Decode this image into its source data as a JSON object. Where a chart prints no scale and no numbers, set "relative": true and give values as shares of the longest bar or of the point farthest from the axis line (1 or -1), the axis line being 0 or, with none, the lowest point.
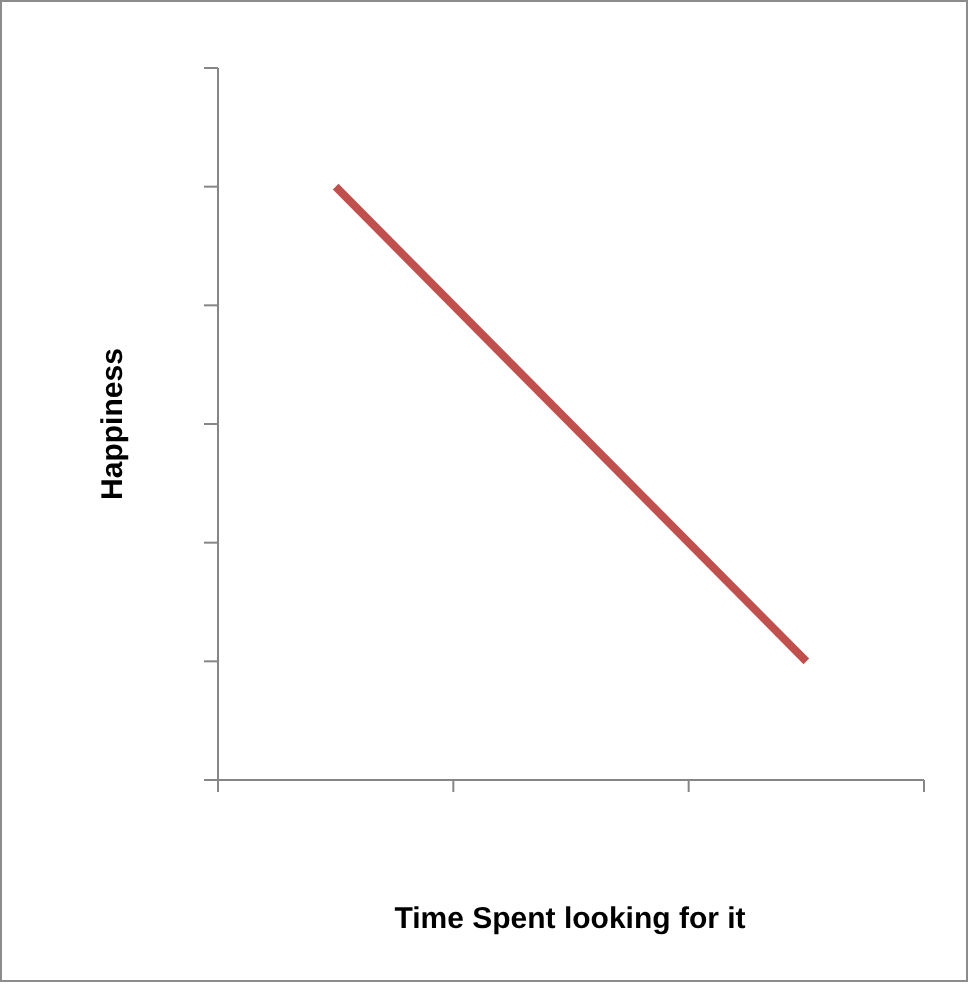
{
  "chart_data": {
    "type": "line",
    "relative": true,
    "xlabel": "Time Spent looking  for it",
    "ylabel": "Happiness",
    "categories": [
      null,
      null,
      null
    ],
    "series": [
      {
        "color": "#c0504d",
        "values": [
          1,
          0.6,
          0.2
        ]
      }
    ],
    "grid": false,
    "legend": false,
    "marker": "none",
    "line_style": "solid"
  }
}
